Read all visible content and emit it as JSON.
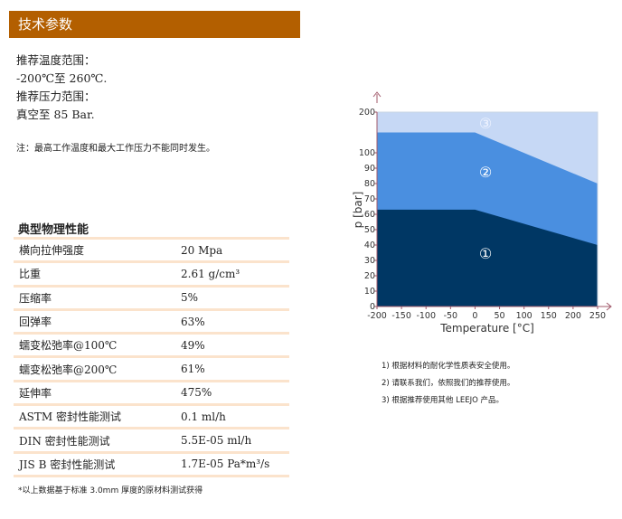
{
  "header": {
    "title": "技术参数"
  },
  "spec": {
    "lines": [
      "推荐温度范围：",
      "-200℃至 260℃.",
      "推荐压力范围：",
      "真空至 85 Bar."
    ],
    "note": "注：最高工作温度和最大工作压力不能同时发生。"
  },
  "props": {
    "title": "典型物理性能",
    "rows": [
      [
        "横向拉伸强度",
        "20 Mpa"
      ],
      [
        "比重",
        "2.61 g/cm³"
      ],
      [
        "压缩率",
        "5%"
      ],
      [
        "回弹率",
        "63%"
      ],
      [
        "蠕变松弛率@100℃",
        "49%"
      ],
      [
        "蠕变松弛率@200℃",
        "61%"
      ],
      [
        "延伸率",
        "475%"
      ],
      [
        "ASTM 密封性能测试",
        "0.1 ml/h"
      ],
      [
        "DIN   密封性能测试",
        "5.5E-05 ml/h"
      ],
      [
        "JIS  B 密封性能测试",
        "1.7E-05 Pa*m³/s"
      ]
    ],
    "footnote": "*以上数据基于标准 3.0mm 厚度的原材料测试获得"
  },
  "notes": [
    "1) 根据材料的耐化学性质表安全使用。",
    "2) 请联系我们，依照我们的推荐使用。",
    "3) 根据推荐使用其他 LEEJO 产品。"
  ],
  "chart_data": {
    "type": "area",
    "xlabel": "Temperature [°C]",
    "ylabel": "p [bar]",
    "xlim": [
      -200,
      250
    ],
    "xticks": [
      -200,
      -150,
      -100,
      -50,
      0,
      50,
      100,
      150,
      200,
      250
    ],
    "yticks": [
      0,
      10,
      20,
      30,
      40,
      50,
      60,
      70,
      80,
      90,
      100,
      200
    ],
    "ylim": [
      0,
      200
    ],
    "zones": [
      {
        "label": "①",
        "color": "#003764",
        "upper": [
          [
            -200,
            63
          ],
          [
            0,
            63
          ],
          [
            250,
            40
          ]
        ]
      },
      {
        "label": "②",
        "color": "#4a8fe0",
        "upper": [
          [
            -200,
            150
          ],
          [
            0,
            150
          ],
          [
            250,
            80
          ]
        ]
      },
      {
        "label": "③",
        "color": "#c6d8f5",
        "upper": [
          [
            -200,
            200
          ],
          [
            250,
            200
          ]
        ]
      }
    ],
    "axis_color": "#a0586a"
  }
}
